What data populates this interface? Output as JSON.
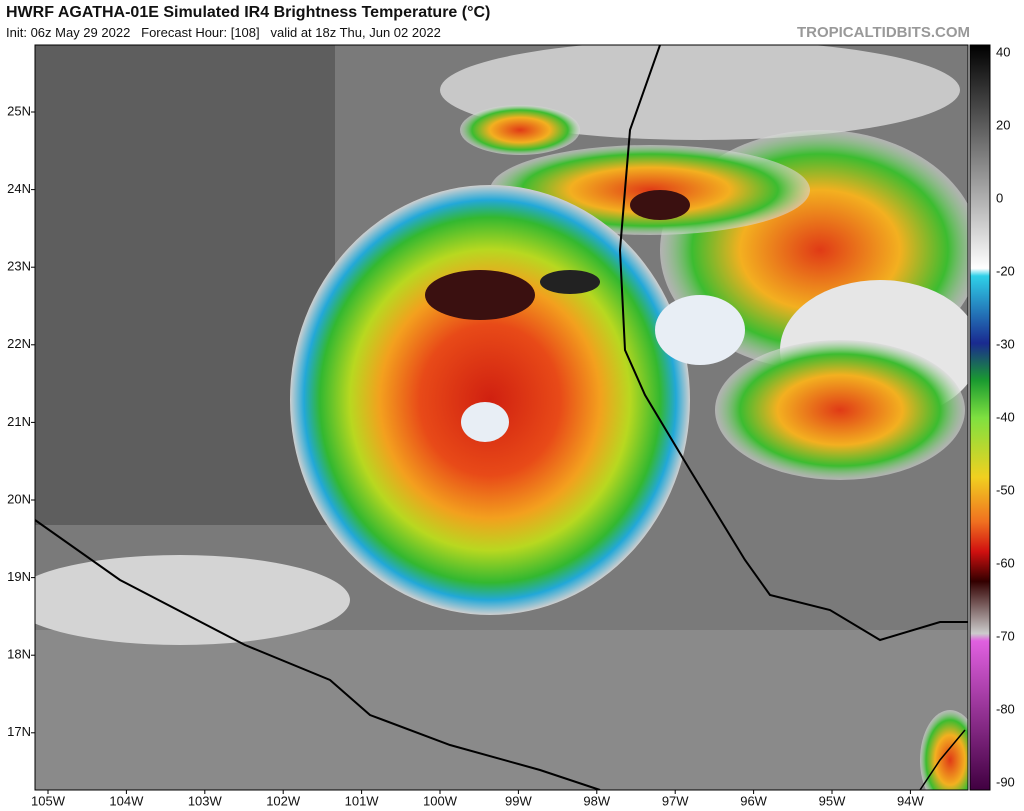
{
  "header": {
    "title": "HWRF AGATHA-01E Simulated IR4 Brightness Temperature (°C)",
    "subtitle": "Init: 06z May 29 2022   Forecast Hour: [108]   valid at 18z Thu, Jun 02 2022",
    "site": "TROPICALTIDBITS.COM"
  },
  "map": {
    "lat_labels": [
      "25N",
      "24N",
      "23N",
      "22N",
      "21N",
      "20N",
      "19N",
      "18N",
      "17N"
    ],
    "lon_labels": [
      "105W",
      "104W",
      "103W",
      "102W",
      "101W",
      "100W",
      "99W",
      "98W",
      "97W",
      "96W",
      "95W",
      "94W"
    ]
  },
  "colorbar": {
    "labels": [
      "40",
      "20",
      "0",
      "-20",
      "-30",
      "-40",
      "-50",
      "-60",
      "-70",
      "-80",
      "-90"
    ]
  }
}
